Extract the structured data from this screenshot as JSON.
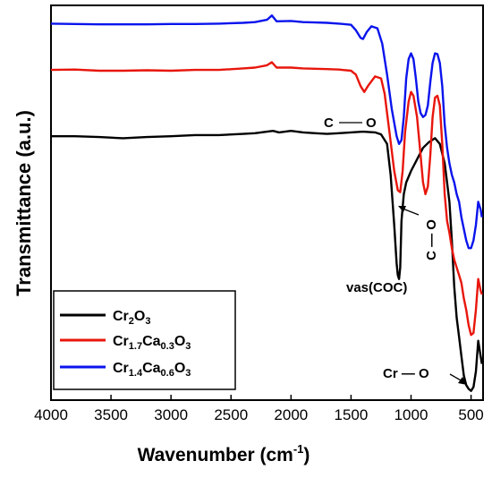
{
  "chart_data": {
    "type": "line",
    "title": "",
    "xlabel": "Wavenumber (cm",
    "xlabel_sup": "-1",
    "xlabel_end": ")",
    "ylabel": "Transmittance (a.u.)",
    "xlim": [
      4000,
      400
    ],
    "x_reversed": true,
    "ylim": [
      0,
      100
    ],
    "y_ticks_shown": false,
    "x_ticks": [
      4000,
      3500,
      3000,
      2500,
      2000,
      1500,
      1000,
      500
    ],
    "grid": false,
    "legend_position": "bottom-left",
    "series": [
      {
        "name": "Cr2O3",
        "legend_parts": [
          {
            "t": "Cr",
            "sub": false
          },
          {
            "t": "2",
            "sub": true
          },
          {
            "t": "O",
            "sub": false
          },
          {
            "t": "3",
            "sub": true
          }
        ],
        "color": "#000000",
        "x": [
          4000,
          3800,
          3600,
          3400,
          3200,
          3000,
          2800,
          2600,
          2400,
          2300,
          2200,
          2150,
          2100,
          2000,
          1900,
          1800,
          1700,
          1600,
          1500,
          1400,
          1300,
          1250,
          1200,
          1170,
          1140,
          1120,
          1110,
          1100,
          1090,
          1080,
          1060,
          1040,
          1000,
          950,
          900,
          850,
          800,
          760,
          720,
          700,
          680,
          660,
          640,
          620,
          600,
          580,
          560,
          540,
          520,
          500,
          480,
          460,
          440,
          420,
          410
        ],
        "y": [
          67.0,
          67.0,
          66.8,
          66.5,
          66.8,
          67.0,
          67.3,
          67.3,
          67.6,
          67.8,
          68.2,
          68.4,
          68.0,
          68.4,
          68.0,
          67.8,
          67.6,
          67.8,
          68.0,
          68.2,
          68.0,
          67.5,
          65.0,
          57.0,
          44.0,
          34.0,
          31.0,
          30.0,
          33.0,
          45.0,
          52.0,
          55.0,
          58.0,
          61.0,
          64.0,
          65.5,
          66.5,
          65.0,
          60.0,
          55.0,
          50.0,
          40.0,
          28.0,
          20.0,
          15.0,
          10.0,
          5.0,
          2.5,
          1.5,
          1.0,
          2.0,
          6.0,
          14.0,
          10.0,
          8.0
        ]
      },
      {
        "name": "Cr1.7Ca0.3O3",
        "legend_parts": [
          {
            "t": "Cr",
            "sub": false
          },
          {
            "t": "1.7",
            "sub": true
          },
          {
            "t": "Ca",
            "sub": false
          },
          {
            "t": "0.3",
            "sub": true
          },
          {
            "t": "O",
            "sub": false
          },
          {
            "t": "3",
            "sub": true
          }
        ],
        "color": "#e8160c",
        "x": [
          4000,
          3800,
          3600,
          3400,
          3200,
          3000,
          2800,
          2600,
          2400,
          2300,
          2200,
          2160,
          2120,
          2000,
          1900,
          1800,
          1700,
          1600,
          1500,
          1460,
          1420,
          1390,
          1360,
          1300,
          1250,
          1220,
          1180,
          1140,
          1110,
          1090,
          1070,
          1050,
          1020,
          1000,
          980,
          950,
          920,
          900,
          880,
          860,
          840,
          820,
          800,
          780,
          760,
          740,
          720,
          700,
          680,
          660,
          640,
          620,
          600,
          580,
          560,
          540,
          520,
          500,
          480,
          460,
          440,
          420,
          410
        ],
        "y": [
          84.2,
          84.3,
          84.0,
          84.0,
          84.1,
          84.0,
          84.2,
          84.2,
          84.6,
          84.8,
          85.4,
          86.2,
          84.8,
          84.8,
          84.6,
          84.5,
          84.4,
          84.3,
          84.0,
          83.0,
          80.0,
          78.5,
          80.0,
          82.5,
          82.0,
          78.0,
          68.0,
          58.0,
          53.0,
          52.5,
          58.0,
          68.0,
          76.0,
          78.5,
          77.5,
          72.0,
          62.0,
          55.0,
          52.0,
          54.0,
          62.0,
          72.0,
          77.0,
          77.5,
          75.0,
          65.0,
          52.0,
          45.0,
          42.0,
          38.0,
          35.0,
          33.0,
          31.0,
          29.0,
          25.0,
          22.0,
          18.0,
          15.5,
          16.0,
          22.0,
          30.0,
          27.0,
          26.0
        ]
      },
      {
        "name": "Cr1.4Ca0.6O3",
        "legend_parts": [
          {
            "t": "Cr",
            "sub": false
          },
          {
            "t": "1.4",
            "sub": true
          },
          {
            "t": "Ca",
            "sub": false
          },
          {
            "t": "0.6",
            "sub": true
          },
          {
            "t": "O",
            "sub": false
          },
          {
            "t": "3",
            "sub": true
          }
        ],
        "color": "#0a14ec",
        "x": [
          4000,
          3800,
          3600,
          3400,
          3200,
          3000,
          2800,
          2600,
          2400,
          2300,
          2200,
          2160,
          2120,
          2000,
          1900,
          1800,
          1700,
          1600,
          1500,
          1460,
          1420,
          1400,
          1370,
          1330,
          1280,
          1240,
          1200,
          1160,
          1120,
          1100,
          1080,
          1060,
          1040,
          1020,
          1000,
          980,
          960,
          940,
          920,
          900,
          880,
          860,
          840,
          820,
          800,
          780,
          760,
          740,
          720,
          700,
          680,
          660,
          640,
          620,
          600,
          580,
          560,
          540,
          520,
          500,
          480,
          460,
          440,
          420,
          410
        ],
        "y": [
          96.2,
          96.1,
          96.0,
          96.0,
          96.0,
          96.1,
          96.1,
          96.2,
          96.4,
          96.6,
          97.2,
          98.3,
          96.8,
          96.9,
          96.6,
          96.5,
          96.4,
          96.2,
          95.9,
          94.5,
          92.5,
          92.2,
          94.0,
          95.5,
          95.0,
          91.0,
          83.0,
          74.0,
          67.0,
          65.0,
          66.0,
          72.0,
          82.0,
          87.0,
          88.5,
          87.0,
          82.0,
          76.0,
          73.0,
          72.0,
          72.5,
          75.0,
          81.0,
          86.0,
          88.5,
          88.3,
          86.0,
          80.0,
          70.0,
          64.0,
          60.0,
          57.0,
          55.0,
          52.0,
          50.0,
          46.0,
          43.0,
          40.0,
          38.0,
          38.0,
          40.0,
          44.0,
          50.0,
          48.0,
          46.0
        ]
      }
    ],
    "annotations": [
      {
        "id": "co-upper",
        "parts": [
          {
            "t": "C",
            "sub": false
          },
          {
            "t": "—",
            "sub": false
          },
          {
            "t": "O",
            "sub": false
          }
        ]
      },
      {
        "id": "vas",
        "text": "vas(COC)"
      },
      {
        "id": "co-vertical",
        "text": "C — O"
      },
      {
        "id": "cro",
        "text": "Cr — O"
      }
    ]
  }
}
